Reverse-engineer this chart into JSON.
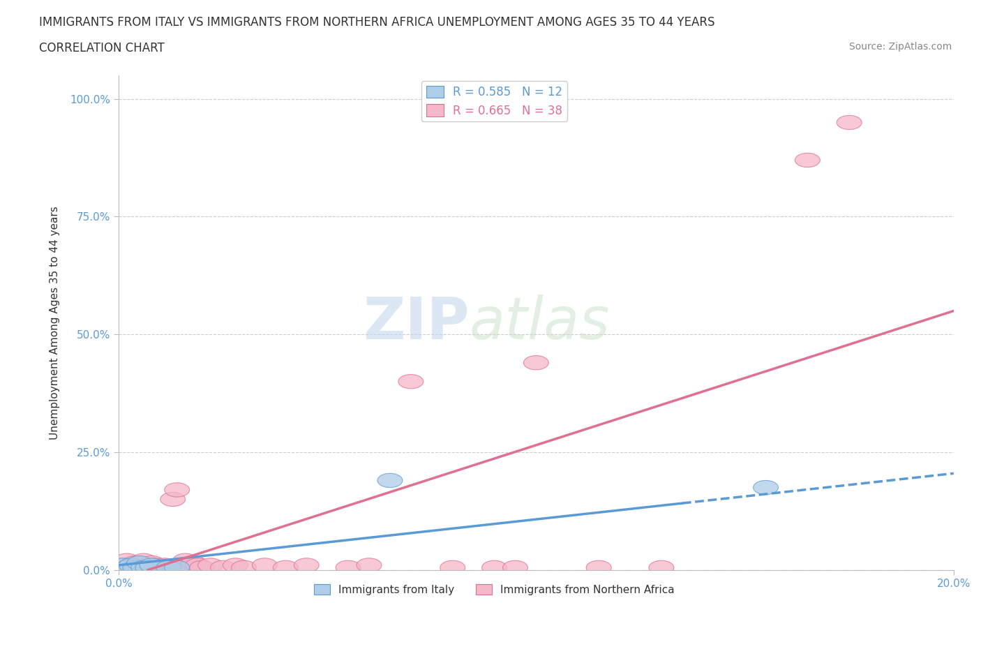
{
  "title": "IMMIGRANTS FROM ITALY VS IMMIGRANTS FROM NORTHERN AFRICA UNEMPLOYMENT AMONG AGES 35 TO 44 YEARS",
  "subtitle": "CORRELATION CHART",
  "source": "Source: ZipAtlas.com",
  "xlabel_label": "Immigrants from Italy",
  "xlabel_label2": "Immigrants from Northern Africa",
  "ylabel": "Unemployment Among Ages 35 to 44 years",
  "xlim": [
    0.0,
    0.2
  ],
  "ylim": [
    0.0,
    1.05
  ],
  "italy_color": "#aecde8",
  "italy_color_edge": "#5b9bd5",
  "north_africa_color": "#f4b8c8",
  "north_africa_color_edge": "#e07090",
  "italy_R": 0.585,
  "italy_N": 12,
  "north_africa_R": 0.665,
  "north_africa_N": 38,
  "italy_scatter_x": [
    0.001,
    0.002,
    0.003,
    0.004,
    0.005,
    0.006,
    0.007,
    0.008,
    0.012,
    0.014,
    0.065,
    0.155
  ],
  "italy_scatter_y": [
    0.01,
    0.005,
    0.01,
    0.005,
    0.015,
    0.005,
    0.005,
    0.01,
    0.005,
    0.005,
    0.19,
    0.175
  ],
  "north_africa_scatter_x": [
    0.001,
    0.002,
    0.003,
    0.004,
    0.005,
    0.006,
    0.007,
    0.008,
    0.009,
    0.01,
    0.011,
    0.012,
    0.013,
    0.014,
    0.015,
    0.016,
    0.017,
    0.018,
    0.019,
    0.02,
    0.022,
    0.025,
    0.028,
    0.03,
    0.035,
    0.04,
    0.045,
    0.055,
    0.06,
    0.07,
    0.08,
    0.09,
    0.095,
    0.1,
    0.115,
    0.13,
    0.165,
    0.175
  ],
  "north_africa_scatter_y": [
    0.01,
    0.02,
    0.005,
    0.015,
    0.01,
    0.02,
    0.005,
    0.015,
    0.01,
    0.005,
    0.01,
    0.005,
    0.15,
    0.17,
    0.01,
    0.02,
    0.005,
    0.015,
    0.01,
    0.005,
    0.01,
    0.005,
    0.01,
    0.005,
    0.01,
    0.005,
    0.01,
    0.005,
    0.01,
    0.4,
    0.005,
    0.005,
    0.005,
    0.44,
    0.005,
    0.005,
    0.87,
    0.95
  ],
  "italy_line_x0": 0.0,
  "italy_line_y0": 0.01,
  "italy_line_x1": 0.2,
  "italy_line_y1": 0.205,
  "italy_line_dash_x0": 0.135,
  "italy_line_dash_y0": 0.175,
  "italy_line_dash_x1": 0.2,
  "italy_line_dash_y1": 0.21,
  "na_line_x0": 0.0,
  "na_line_y0": -0.02,
  "na_line_x1": 0.2,
  "na_line_y1": 0.55,
  "watermark_top": "ZIP",
  "watermark_bottom": "atlas",
  "background_color": "#ffffff",
  "grid_color": "#cccccc",
  "tick_color": "#5b9bd5",
  "text_color": "#333333",
  "source_color": "#888888"
}
